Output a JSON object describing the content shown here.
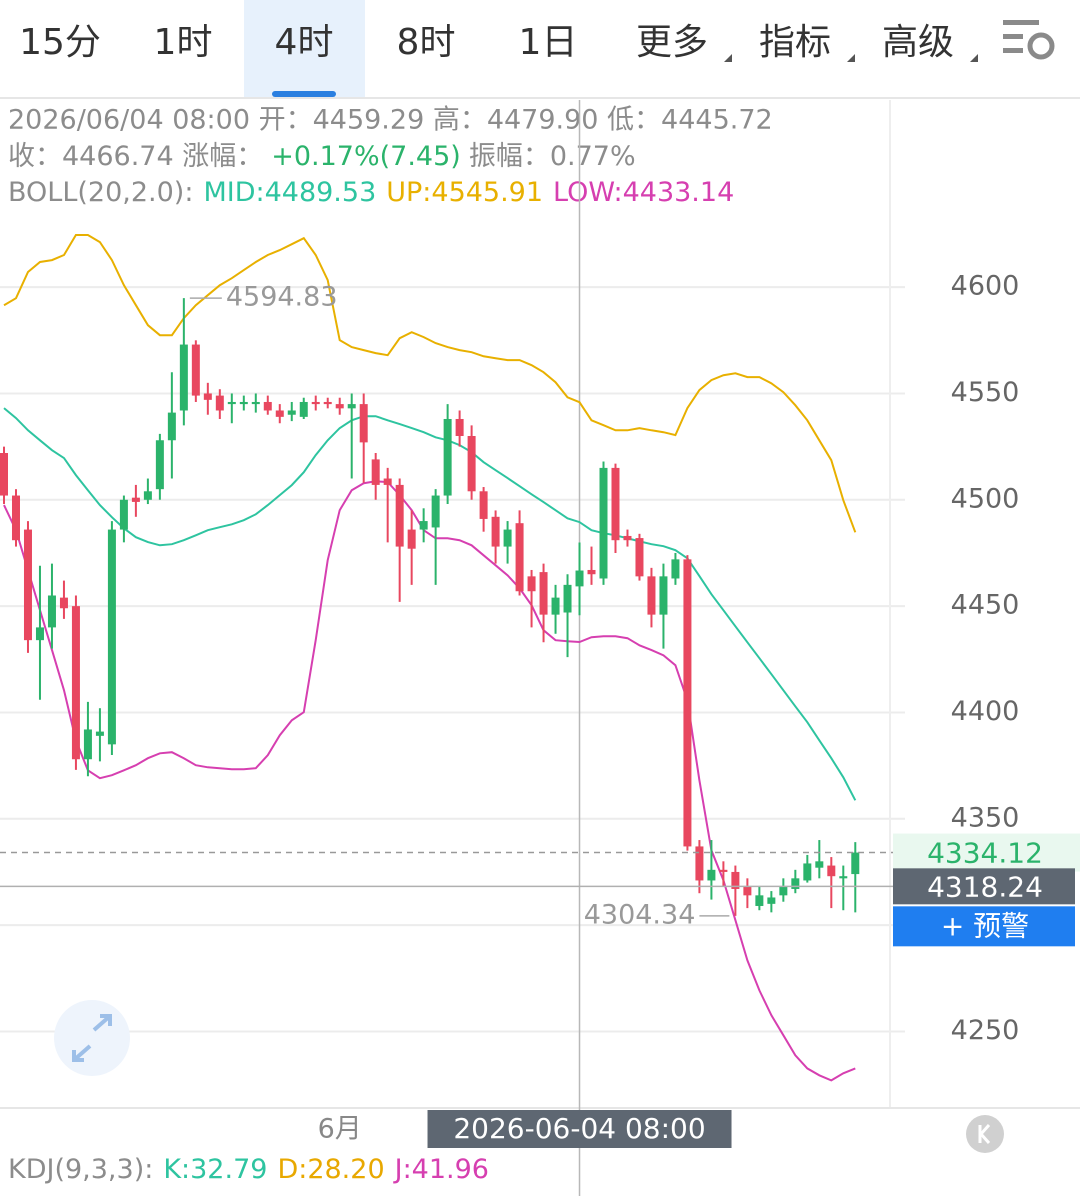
{
  "tabs": [
    "15分",
    "1时",
    "4时",
    "8时",
    "1日",
    "更多",
    "指标",
    "高级"
  ],
  "active_tab": 2,
  "info": {
    "line1": "2026/06/04 08:00 开：4459.29 高：4479.90 低：4445.72",
    "line2": [
      {
        "text": "收：4466.74 涨幅："
      },
      {
        "text": "+0.17%(7.45)",
        "color": "#2bb36b"
      },
      {
        "text": "振幅：0.77%"
      }
    ],
    "indicator": "BOLL(20,2.0):"
  },
  "alert_button": "+ 预警",
  "kdj": {
    "label": "KDJ(9,3,3):",
    "items": [
      {
        "text": "K:32.79",
        "color": "#2ec4a0"
      },
      {
        "text": "D:28.20",
        "color": "#e8a800"
      },
      {
        "text": "J:41.96",
        "color": "#d63fb0"
      }
    ]
  },
  "chart_data": {
    "type": "candlestick",
    "up_color": "#2bb36b",
    "down_color": "#e8475f",
    "categories": [
      null,
      null,
      null,
      null,
      null,
      null,
      null,
      null,
      null,
      null,
      null,
      null,
      null,
      null,
      null,
      null,
      null,
      null,
      null,
      null,
      null,
      null,
      null,
      null,
      null,
      null,
      null,
      null,
      "6月",
      null,
      null,
      null,
      null,
      null,
      null,
      null,
      null,
      null,
      null,
      null,
      null,
      null,
      null,
      null,
      null,
      null,
      null,
      null,
      "2026-06-04 08:00",
      null,
      null,
      null,
      null,
      null,
      null,
      null,
      null,
      null,
      null,
      null,
      null,
      null,
      null,
      null,
      null,
      null,
      null,
      null,
      null,
      null,
      null,
      null
    ],
    "open": [
      4522,
      4502,
      4486,
      4434,
      4440,
      4454,
      4450,
      4378,
      4389,
      4385,
      4486,
      4501,
      4500,
      4505,
      4528,
      4542,
      4573,
      4550,
      4549,
      4545,
      4545,
      4545,
      4546,
      4542,
      4540,
      4539,
      4546,
      4546,
      4545,
      4543,
      4545,
      4519,
      4510,
      4507,
      4486,
      4486,
      4487,
      4502,
      4538,
      4530,
      4504,
      4492,
      4478,
      4489,
      4464,
      4466,
      4446,
      4447,
      4459.29,
      4467,
      4463,
      4515,
      4483,
      4482,
      4464,
      4446,
      4463,
      4472,
      4337,
      4321,
      4326,
      4325,
      4318,
      4309,
      4310,
      4314,
      4317,
      4321,
      4327,
      4328,
      4322,
      4324
    ],
    "high": [
      4525,
      4505,
      4490,
      4469,
      4470,
      4462,
      4455,
      4405,
      4402,
      4490,
      4502,
      4507,
      4510,
      4531,
      4560,
      4594.83,
      4575,
      4555,
      4552,
      4550,
      4549,
      4550,
      4549,
      4545,
      4546,
      4548,
      4549,
      4548,
      4548,
      4550,
      4550,
      4522,
      4515,
      4510,
      4495,
      4496,
      4505,
      4545,
      4542,
      4535,
      4506,
      4495,
      4490,
      4495,
      4467,
      4470,
      4460,
      4465,
      4479.9,
      4478,
      4518,
      4517,
      4486,
      4484,
      4468,
      4470,
      4475,
      4474,
      4340,
      4340,
      4330,
      4328,
      4322,
      4318,
      4316,
      4322,
      4326,
      4333,
      4340,
      4332,
      4328,
      4339
    ],
    "low": [
      4498,
      4478,
      4428,
      4406,
      4430,
      4444,
      4373,
      4370,
      4377,
      4380,
      4480,
      4492,
      4498,
      4500,
      4510,
      4535,
      4546,
      4540,
      4538,
      4536,
      4542,
      4541,
      4540,
      4536,
      4537,
      4538,
      4542,
      4543,
      4540,
      4510,
      4508,
      4500,
      4480,
      4452,
      4460,
      4480,
      4460,
      4498,
      4525,
      4500,
      4485,
      4470,
      4470,
      4455,
      4440,
      4433,
      4437,
      4426,
      4445.72,
      4460,
      4460,
      4475,
      4478,
      4462,
      4440,
      4430,
      4460,
      4335,
      4315,
      4312,
      4318,
      4304.34,
      4308,
      4307,
      4306,
      4311,
      4315,
      4320,
      4322,
      4308,
      4307,
      4306
    ],
    "close": [
      4502,
      4481,
      4434,
      4440,
      4455,
      4449,
      4378,
      4392,
      4391,
      4486,
      4500,
      4499,
      4504,
      4528,
      4541,
      4573,
      4549,
      4547,
      4542,
      4546,
      4546,
      4546,
      4542,
      4539,
      4542,
      4546,
      4545,
      4545,
      4543,
      4545,
      4527,
      4507,
      4507,
      4478,
      4477,
      4490,
      4502,
      4538,
      4530,
      4504,
      4491,
      4478,
      4486,
      4457,
      4457,
      4446,
      4454,
      4460,
      4466.74,
      4465,
      4515,
      4481,
      4481,
      4464,
      4446,
      4464,
      4472,
      4337,
      4321,
      4326,
      4325,
      4317,
      4314,
      4314,
      4313,
      4318,
      4322,
      4329,
      4330,
      4323,
      4323,
      4334.12
    ],
    "series": [
      {
        "name": "MID:",
        "color": "#2ec4a0",
        "values": [
          4543.1,
          4538.4,
          4532.7,
          4528.0,
          4523.3,
          4519.6,
          4511.6,
          4504.5,
          4497.5,
          4491.8,
          4486.6,
          4482.4,
          4480.1,
          4478.6,
          4479.1,
          4481.0,
          4483.3,
          4485.7,
          4487.1,
          4488.5,
          4490.4,
          4493.2,
          4497.5,
          4502.2,
          4506.9,
          4513.0,
          4521.0,
          4528.0,
          4533.7,
          4537.4,
          4539.3,
          4539.3,
          4537.4,
          4535.6,
          4533.7,
          4531.8,
          4529.4,
          4528.0,
          4525.7,
          4522.4,
          4517.7,
          4513.9,
          4510.2,
          4506.4,
          4502.6,
          4498.9,
          4495.1,
          4491.3,
          4489.53,
          4485.7,
          4484.3,
          4483.3,
          4481.9,
          4480.5,
          4479.1,
          4478.2,
          4476.3,
          4472.5,
          4464.1,
          4455.6,
          4448.1,
          4440.5,
          4433.0,
          4425.5,
          4418.0,
          4410.4,
          4402.9,
          4395.4,
          4386.9,
          4378.5,
          4369.5,
          4358.7
        ]
      },
      {
        "name": "UP:",
        "color": "#e8b000",
        "values": [
          4591.5,
          4594.8,
          4607.1,
          4611.8,
          4612.7,
          4615.1,
          4624.5,
          4624.5,
          4621.2,
          4612.7,
          4600.9,
          4591.5,
          4582.1,
          4577.4,
          4577.4,
          4585.4,
          4591.5,
          4596.2,
          4600.9,
          4604.2,
          4608.0,
          4611.8,
          4615.1,
          4617.4,
          4620.2,
          4623.0,
          4615.1,
          4603.3,
          4575.1,
          4571.8,
          4570.4,
          4569.0,
          4568.0,
          4576.0,
          4578.8,
          4576.5,
          4573.7,
          4571.8,
          4570.4,
          4569.4,
          4567.5,
          4566.6,
          4565.7,
          4565.7,
          4563.3,
          4560.0,
          4555.3,
          4548.2,
          4545.91,
          4537.4,
          4535.1,
          4532.7,
          4532.7,
          4533.7,
          4532.7,
          4531.8,
          4530.4,
          4543.1,
          4551.6,
          4556.3,
          4558.6,
          4559.5,
          4557.7,
          4557.7,
          4554.8,
          4550.6,
          4544.5,
          4537.4,
          4528.0,
          4518.6,
          4499.8,
          4484.7
        ]
      },
      {
        "name": "LOW:",
        "color": "#d63fb0",
        "values": [
          4497.5,
          4485.7,
          4466.9,
          4448.1,
          4429.3,
          4410.4,
          4386.9,
          4372.8,
          4369.1,
          4370.5,
          4372.8,
          4375.2,
          4378.5,
          4380.8,
          4381.3,
          4378.5,
          4375.2,
          4374.2,
          4373.8,
          4373.3,
          4373.3,
          4373.8,
          4379.9,
          4389.3,
          4396.3,
          4400.1,
          4434.0,
          4471.6,
          4495.1,
          4504.5,
          4507.8,
          4508.7,
          4508.3,
          4502.2,
          4495.1,
          4485.7,
          4481.9,
          4481.9,
          4481.0,
          4478.6,
          4473.9,
          4469.2,
          4464.5,
          4458.4,
          4450.4,
          4438.7,
          4434.0,
          4433.5,
          4433.14,
          4435.4,
          4435.8,
          4435.8,
          4434.9,
          4431.6,
          4429.3,
          4426.9,
          4422.2,
          4405.7,
          4368.1,
          4335.2,
          4321.1,
          4302.3,
          4283.4,
          4269.3,
          4257.6,
          4248.2,
          4238.8,
          4232.6,
          4229.4,
          4227.0,
          4230.3,
          4232.6
        ]
      }
    ],
    "crosshair": {
      "category": "2026-06-04 08:00",
      "value": 4318.24
    },
    "ylim": [
      4214,
      4688
    ],
    "yticks": [
      4250,
      4300,
      4350,
      4400,
      4450,
      4500,
      4550,
      4600
    ],
    "grid": true
  }
}
